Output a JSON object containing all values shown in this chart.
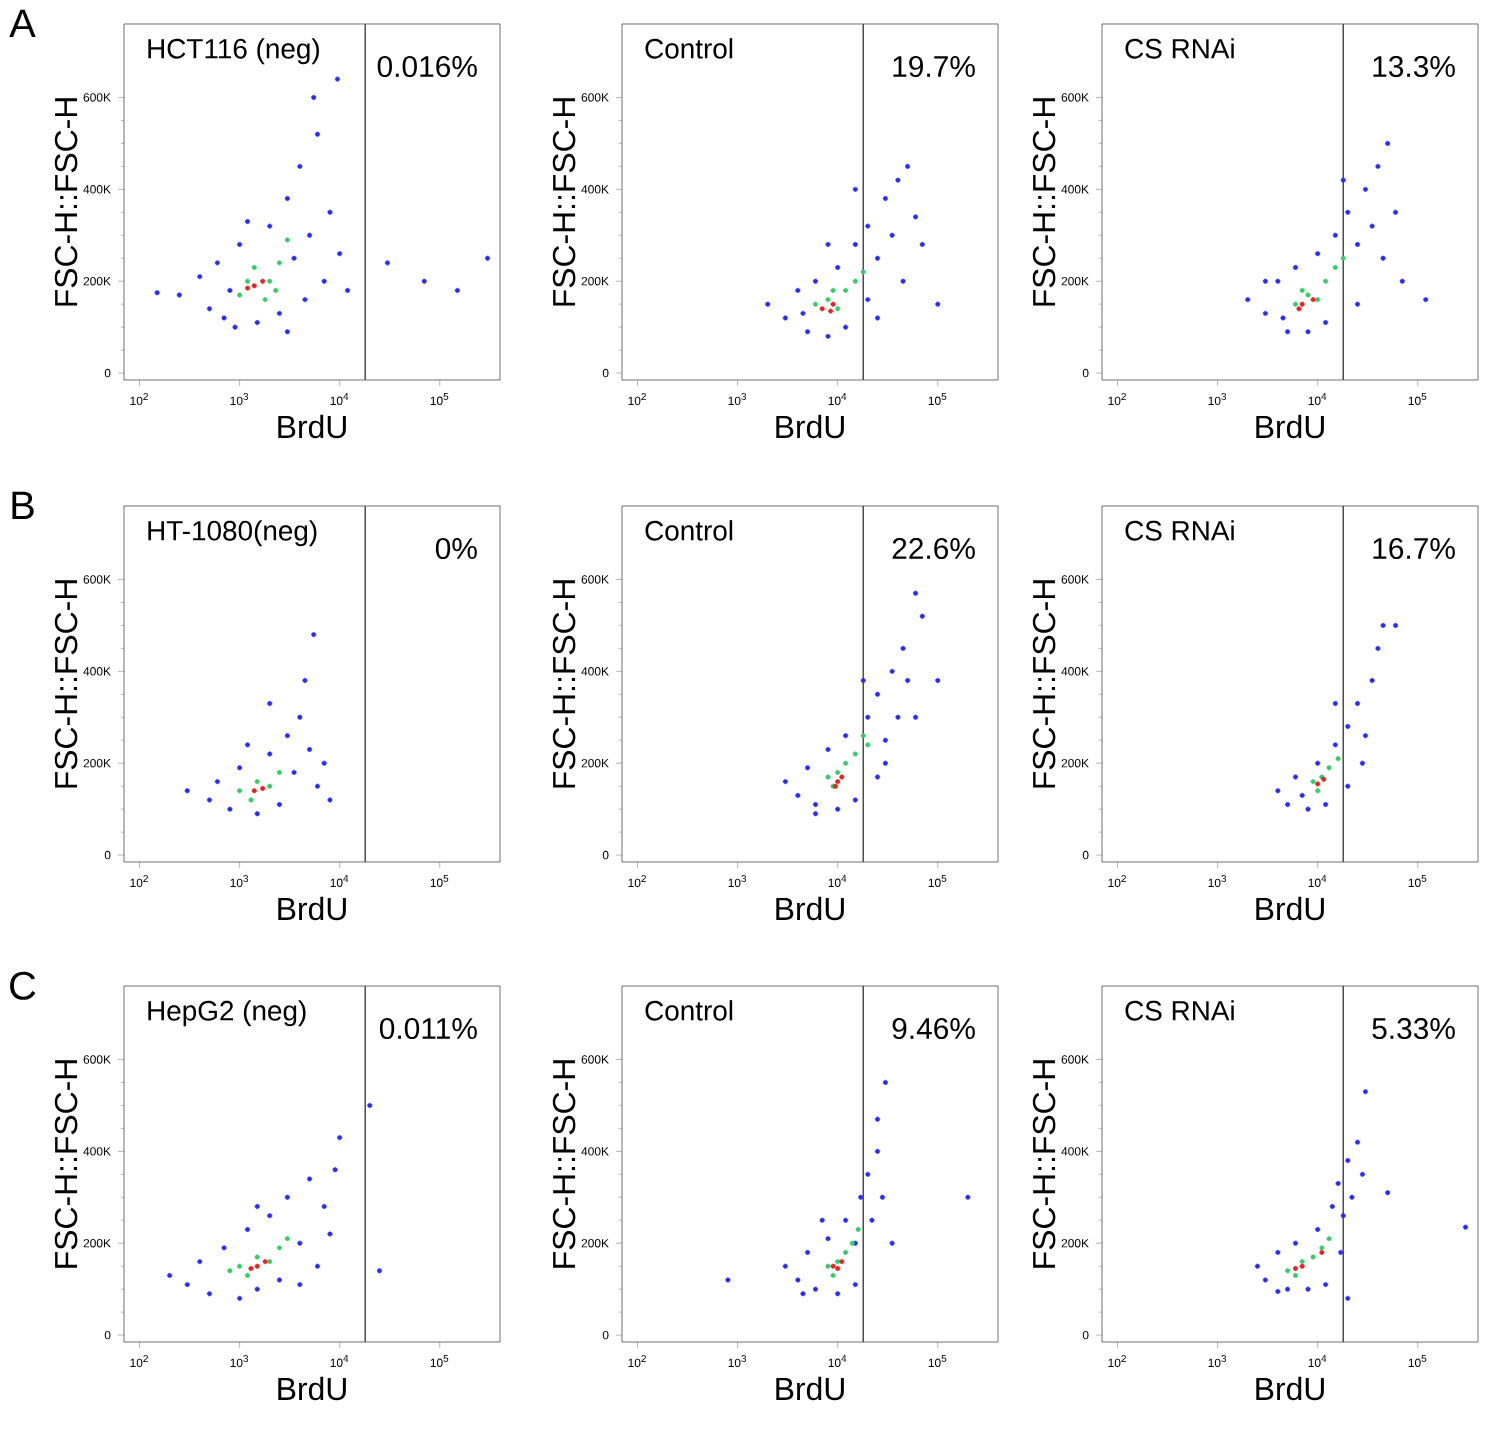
{
  "chart_data": [
    {
      "type": "scatter",
      "xlabel": "BrdU",
      "ylabel": "FSC-H::FSC-H",
      "log": "x",
      "xlim": [
        70,
        400000
      ],
      "ylim": [
        -15000,
        760000
      ],
      "xticks": [
        {
          "value": 100,
          "label": "10$^{2}$"
        },
        {
          "value": 1000,
          "label": "10$^{3}$"
        },
        {
          "value": 10000,
          "label": "10$^{4}$"
        },
        {
          "value": 100000,
          "label": "10$^{5}$"
        }
      ],
      "yticks": [
        0,
        {
          "value": 200000,
          "label": "200K"
        },
        {
          "value": 400000,
          "label": "400K"
        },
        {
          "value": 600000,
          "label": "600K"
        }
      ],
      "ref_lines": [
        {
          "axis": "x",
          "value": 18000,
          "color": "#404040"
        }
      ],
      "annotations": [
        "A",
        "HCT116 (neg)",
        "0.016%"
      ],
      "series": [
        {
          "color": "#2a2aff",
          "x": [
            150,
            250,
            400,
            500,
            600,
            700,
            900,
            1000,
            1500,
            2000,
            2500,
            3000,
            3500,
            4000,
            4500,
            5000,
            6000,
            7000,
            8000,
            5500,
            9500,
            3000,
            1200,
            800,
            10000,
            30000,
            70000,
            150000,
            300000,
            12000
          ],
          "values": [
            175000,
            170000,
            210000,
            140000,
            240000,
            120000,
            100000,
            280000,
            110000,
            320000,
            130000,
            380000,
            250000,
            450000,
            160000,
            300000,
            520000,
            200000,
            350000,
            600000,
            640000,
            90000,
            330000,
            180000,
            260000,
            240000,
            200000,
            180000,
            250000,
            180000
          ]
        },
        {
          "color": "#33cc66",
          "x": [
            1000,
            1400,
            2000,
            1800,
            2500,
            1200,
            3000,
            2300
          ],
          "values": [
            170000,
            230000,
            200000,
            160000,
            240000,
            200000,
            290000,
            180000
          ]
        },
        {
          "color": "#e82020",
          "x": [
            1400,
            1700,
            1200
          ],
          "values": [
            190000,
            200000,
            185000
          ]
        }
      ]
    },
    {
      "type": "scatter",
      "xlabel": "BrdU",
      "ylabel": "FSC-H::FSC-H",
      "log": "x",
      "xlim": [
        70,
        400000
      ],
      "ylim": [
        -15000,
        760000
      ],
      "xticks": [
        {
          "value": 100,
          "label": "10$^{2}$"
        },
        {
          "value": 1000,
          "label": "10$^{3}$"
        },
        {
          "value": 10000,
          "label": "10$^{4}$"
        },
        {
          "value": 100000,
          "label": "10$^{5}$"
        }
      ],
      "yticks": [
        0,
        {
          "value": 200000,
          "label": "200K"
        },
        {
          "value": 400000,
          "label": "400K"
        },
        {
          "value": 600000,
          "label": "600K"
        }
      ],
      "ref_lines": [
        {
          "axis": "x",
          "value": 18000,
          "color": "#404040"
        }
      ],
      "annotations": [
        "Control",
        "19.7%"
      ],
      "series": [
        {
          "color": "#2a2aff",
          "x": [
            2000,
            3000,
            4000,
            5000,
            6000,
            8000,
            10000,
            12000,
            15000,
            20000,
            25000,
            30000,
            35000,
            40000,
            50000,
            60000,
            70000,
            20000,
            25000,
            15000,
            100000,
            8000,
            4500,
            45000
          ],
          "values": [
            150000,
            120000,
            180000,
            90000,
            200000,
            80000,
            230000,
            100000,
            280000,
            320000,
            250000,
            380000,
            300000,
            420000,
            450000,
            340000,
            280000,
            160000,
            120000,
            400000,
            150000,
            280000,
            130000,
            200000
          ]
        },
        {
          "color": "#33cc66",
          "x": [
            6000,
            8000,
            10000,
            12000,
            15000,
            18000,
            9000
          ],
          "values": [
            150000,
            160000,
            140000,
            180000,
            200000,
            220000,
            180000
          ]
        },
        {
          "color": "#e82020",
          "x": [
            7000,
            8500,
            9000
          ],
          "values": [
            140000,
            135000,
            150000
          ]
        }
      ]
    },
    {
      "type": "scatter",
      "xlabel": "BrdU",
      "ylabel": "FSC-H::FSC-H",
      "log": "x",
      "xlim": [
        70,
        400000
      ],
      "ylim": [
        -15000,
        760000
      ],
      "xticks": [
        {
          "value": 100,
          "label": "10$^{2}$"
        },
        {
          "value": 1000,
          "label": "10$^{3}$"
        },
        {
          "value": 10000,
          "label": "10$^{4}$"
        },
        {
          "value": 100000,
          "label": "10$^{5}$"
        }
      ],
      "yticks": [
        0,
        {
          "value": 200000,
          "label": "200K"
        },
        {
          "value": 400000,
          "label": "400K"
        },
        {
          "value": 600000,
          "label": "600K"
        }
      ],
      "ref_lines": [
        {
          "axis": "x",
          "value": 18000,
          "color": "#404040"
        }
      ],
      "annotations": [
        "CS RNAi",
        "13.3%"
      ],
      "series": [
        {
          "color": "#2a2aff",
          "x": [
            2000,
            3000,
            4000,
            5000,
            6000,
            8000,
            10000,
            12000,
            15000,
            20000,
            25000,
            30000,
            35000,
            40000,
            50000,
            60000,
            25000,
            18000,
            70000,
            4500,
            3000,
            45000,
            120000
          ],
          "values": [
            160000,
            130000,
            200000,
            90000,
            230000,
            90000,
            260000,
            110000,
            300000,
            350000,
            280000,
            400000,
            320000,
            450000,
            500000,
            350000,
            150000,
            420000,
            200000,
            120000,
            200000,
            250000,
            160000
          ]
        },
        {
          "color": "#33cc66",
          "x": [
            6000,
            8000,
            10000,
            12000,
            15000,
            18000,
            7000
          ],
          "values": [
            150000,
            170000,
            160000,
            200000,
            230000,
            250000,
            180000
          ]
        },
        {
          "color": "#e82020",
          "x": [
            7000,
            9000,
            6500
          ],
          "values": [
            150000,
            160000,
            140000
          ]
        }
      ]
    },
    {
      "type": "scatter",
      "xlabel": "BrdU",
      "ylabel": "FSC-H::FSC-H",
      "log": "x",
      "xlim": [
        70,
        400000
      ],
      "ylim": [
        -15000,
        760000
      ],
      "xticks": [
        {
          "value": 100,
          "label": "10$^{2}$"
        },
        {
          "value": 1000,
          "label": "10$^{3}$"
        },
        {
          "value": 10000,
          "label": "10$^{4}$"
        },
        {
          "value": 100000,
          "label": "10$^{5}$"
        }
      ],
      "yticks": [
        0,
        {
          "value": 200000,
          "label": "200K"
        },
        {
          "value": 400000,
          "label": "400K"
        },
        {
          "value": 600000,
          "label": "600K"
        }
      ],
      "ref_lines": [
        {
          "axis": "x",
          "value": 18000,
          "color": "#404040"
        }
      ],
      "annotations": [
        "B",
        "HT-1080(neg)",
        "0%"
      ],
      "series": [
        {
          "color": "#2a2aff",
          "x": [
            300,
            500,
            600,
            800,
            1000,
            1500,
            2000,
            2500,
            3000,
            3500,
            4000,
            5000,
            6000,
            4500,
            5500,
            2000,
            7000,
            1200,
            8000
          ],
          "values": [
            140000,
            120000,
            160000,
            100000,
            190000,
            90000,
            220000,
            110000,
            260000,
            180000,
            300000,
            230000,
            150000,
            380000,
            480000,
            330000,
            200000,
            240000,
            120000
          ]
        },
        {
          "color": "#33cc66",
          "x": [
            1000,
            1500,
            2000,
            1300,
            2500
          ],
          "values": [
            140000,
            160000,
            150000,
            120000,
            180000
          ]
        },
        {
          "color": "#e82020",
          "x": [
            1400,
            1700
          ],
          "values": [
            140000,
            145000
          ]
        }
      ]
    },
    {
      "type": "scatter",
      "xlabel": "BrdU",
      "ylabel": "FSC-H::FSC-H",
      "log": "x",
      "xlim": [
        70,
        400000
      ],
      "ylim": [
        -15000,
        760000
      ],
      "xticks": [
        {
          "value": 100,
          "label": "10$^{2}$"
        },
        {
          "value": 1000,
          "label": "10$^{3}$"
        },
        {
          "value": 10000,
          "label": "10$^{4}$"
        },
        {
          "value": 100000,
          "label": "10$^{5}$"
        }
      ],
      "yticks": [
        0,
        {
          "value": 200000,
          "label": "200K"
        },
        {
          "value": 400000,
          "label": "400K"
        },
        {
          "value": 600000,
          "label": "600K"
        }
      ],
      "ref_lines": [
        {
          "axis": "x",
          "value": 18000,
          "color": "#404040"
        }
      ],
      "annotations": [
        "Control",
        "22.6%"
      ],
      "series": [
        {
          "color": "#2a2aff",
          "x": [
            3000,
            4000,
            5000,
            6000,
            8000,
            10000,
            12000,
            15000,
            20000,
            25000,
            30000,
            35000,
            40000,
            45000,
            50000,
            60000,
            70000,
            100000,
            25000,
            30000,
            18000,
            6000,
            60000
          ],
          "values": [
            160000,
            130000,
            190000,
            110000,
            230000,
            100000,
            260000,
            120000,
            300000,
            350000,
            250000,
            400000,
            300000,
            450000,
            380000,
            570000,
            520000,
            380000,
            170000,
            200000,
            380000,
            90000,
            300000
          ]
        },
        {
          "color": "#33cc66",
          "x": [
            8000,
            10000,
            12000,
            15000,
            18000,
            20000,
            9000
          ],
          "values": [
            170000,
            180000,
            200000,
            220000,
            260000,
            240000,
            150000
          ]
        },
        {
          "color": "#e82020",
          "x": [
            10000,
            11000,
            9500
          ],
          "values": [
            160000,
            170000,
            150000
          ]
        }
      ]
    },
    {
      "type": "scatter",
      "xlabel": "BrdU",
      "ylabel": "FSC-H::FSC-H",
      "log": "x",
      "xlim": [
        70,
        400000
      ],
      "ylim": [
        -15000,
        760000
      ],
      "xticks": [
        {
          "value": 100,
          "label": "10$^{2}$"
        },
        {
          "value": 1000,
          "label": "10$^{3}$"
        },
        {
          "value": 10000,
          "label": "10$^{4}$"
        },
        {
          "value": 100000,
          "label": "10$^{5}$"
        }
      ],
      "yticks": [
        0,
        {
          "value": 200000,
          "label": "200K"
        },
        {
          "value": 400000,
          "label": "400K"
        },
        {
          "value": 600000,
          "label": "600K"
        }
      ],
      "ref_lines": [
        {
          "axis": "x",
          "value": 18000,
          "color": "#404040"
        }
      ],
      "annotations": [
        "CS RNAi",
        "16.7%"
      ],
      "series": [
        {
          "color": "#2a2aff",
          "x": [
            4000,
            5000,
            6000,
            8000,
            10000,
            12000,
            15000,
            20000,
            25000,
            30000,
            35000,
            40000,
            45000,
            60000,
            20000,
            15000,
            7000,
            28000
          ],
          "values": [
            140000,
            110000,
            170000,
            100000,
            200000,
            110000,
            240000,
            280000,
            330000,
            260000,
            380000,
            450000,
            500000,
            500000,
            150000,
            330000,
            130000,
            200000
          ]
        },
        {
          "color": "#33cc66",
          "x": [
            9000,
            11000,
            13000,
            16000,
            10000
          ],
          "values": [
            160000,
            170000,
            190000,
            210000,
            140000
          ]
        },
        {
          "color": "#e82020",
          "x": [
            10000,
            11500
          ],
          "values": [
            155000,
            165000
          ]
        }
      ]
    },
    {
      "type": "scatter",
      "xlabel": "BrdU",
      "ylabel": "FSC-H::FSC-H",
      "log": "x",
      "xlim": [
        70,
        400000
      ],
      "ylim": [
        -15000,
        760000
      ],
      "xticks": [
        {
          "value": 100,
          "label": "10$^{2}$"
        },
        {
          "value": 1000,
          "label": "10$^{3}$"
        },
        {
          "value": 10000,
          "label": "10$^{4}$"
        },
        {
          "value": 100000,
          "label": "10$^{5}$"
        }
      ],
      "yticks": [
        0,
        {
          "value": 200000,
          "label": "200K"
        },
        {
          "value": 400000,
          "label": "400K"
        },
        {
          "value": 600000,
          "label": "600K"
        }
      ],
      "ref_lines": [
        {
          "axis": "x",
          "value": 18000,
          "color": "#404040"
        }
      ],
      "annotations": [
        "C",
        "HepG2 (neg)",
        "0.011%"
      ],
      "series": [
        {
          "color": "#2a2aff",
          "x": [
            200,
            300,
            400,
            500,
            700,
            1000,
            1200,
            1500,
            2000,
            2500,
            3000,
            4000,
            5000,
            6000,
            7000,
            8000,
            10000,
            20000,
            25000,
            4000,
            1500,
            9000
          ],
          "values": [
            130000,
            110000,
            160000,
            90000,
            190000,
            80000,
            230000,
            100000,
            260000,
            120000,
            300000,
            200000,
            340000,
            150000,
            280000,
            220000,
            430000,
            500000,
            140000,
            110000,
            280000,
            360000
          ]
        },
        {
          "color": "#33cc66",
          "x": [
            1000,
            1500,
            2000,
            2500,
            3000,
            1200,
            800
          ],
          "values": [
            150000,
            170000,
            160000,
            190000,
            210000,
            130000,
            140000
          ]
        },
        {
          "color": "#e82020",
          "x": [
            1500,
            1800,
            1300
          ],
          "values": [
            150000,
            160000,
            145000
          ]
        }
      ]
    },
    {
      "type": "scatter",
      "xlabel": "BrdU",
      "ylabel": "FSC-H::FSC-H",
      "log": "x",
      "xlim": [
        70,
        400000
      ],
      "ylim": [
        -15000,
        760000
      ],
      "xticks": [
        {
          "value": 100,
          "label": "10$^{2}$"
        },
        {
          "value": 1000,
          "label": "10$^{3}$"
        },
        {
          "value": 10000,
          "label": "10$^{4}$"
        },
        {
          "value": 100000,
          "label": "10$^{5}$"
        }
      ],
      "yticks": [
        0,
        {
          "value": 200000,
          "label": "200K"
        },
        {
          "value": 400000,
          "label": "400K"
        },
        {
          "value": 600000,
          "label": "600K"
        }
      ],
      "ref_lines": [
        {
          "axis": "x",
          "value": 18000,
          "color": "#404040"
        }
      ],
      "annotations": [
        "Control",
        "9.46%"
      ],
      "series": [
        {
          "color": "#2a2aff",
          "x": [
            3000,
            4000,
            5000,
            6000,
            8000,
            10000,
            12000,
            15000,
            17000,
            20000,
            22000,
            25000,
            28000,
            30000,
            25000,
            200000,
            800,
            35000,
            15000,
            7000,
            4500
          ],
          "values": [
            150000,
            120000,
            180000,
            100000,
            210000,
            90000,
            250000,
            110000,
            300000,
            350000,
            250000,
            400000,
            300000,
            550000,
            470000,
            300000,
            120000,
            200000,
            200000,
            250000,
            90000
          ]
        },
        {
          "color": "#33cc66",
          "x": [
            8000,
            10000,
            12000,
            14000,
            16000,
            9000
          ],
          "values": [
            150000,
            160000,
            180000,
            200000,
            230000,
            130000
          ]
        },
        {
          "color": "#e82020",
          "x": [
            9000,
            10000,
            11000
          ],
          "values": [
            150000,
            145000,
            160000
          ]
        }
      ]
    },
    {
      "type": "scatter",
      "xlabel": "BrdU",
      "ylabel": "FSC-H::FSC-H",
      "log": "x",
      "xlim": [
        70,
        400000
      ],
      "ylim": [
        -15000,
        760000
      ],
      "xticks": [
        {
          "value": 100,
          "label": "10$^{2}$"
        },
        {
          "value": 1000,
          "label": "10$^{3}$"
        },
        {
          "value": 10000,
          "label": "10$^{4}$"
        },
        {
          "value": 100000,
          "label": "10$^{5}$"
        }
      ],
      "yticks": [
        0,
        {
          "value": 200000,
          "label": "200K"
        },
        {
          "value": 400000,
          "label": "400K"
        },
        {
          "value": 600000,
          "label": "600K"
        }
      ],
      "ref_lines": [
        {
          "axis": "x",
          "value": 18000,
          "color": "#404040"
        }
      ],
      "annotations": [
        "CS RNAi",
        "5.33%"
      ],
      "series": [
        {
          "color": "#2a2aff",
          "x": [
            2500,
            3000,
            4000,
            5000,
            6000,
            8000,
            10000,
            12000,
            14000,
            16000,
            18000,
            20000,
            22000,
            25000,
            30000,
            50000,
            300000,
            20000,
            4000,
            17000,
            28000
          ],
          "values": [
            150000,
            120000,
            180000,
            100000,
            200000,
            100000,
            230000,
            110000,
            280000,
            330000,
            260000,
            380000,
            300000,
            420000,
            530000,
            310000,
            235000,
            80000,
            95000,
            180000,
            350000
          ]
        },
        {
          "color": "#33cc66",
          "x": [
            5000,
            7000,
            9000,
            11000,
            13000,
            6000
          ],
          "values": [
            140000,
            160000,
            170000,
            190000,
            210000,
            130000
          ]
        },
        {
          "color": "#e82020",
          "x": [
            6000,
            7000,
            11000
          ],
          "values": [
            145000,
            150000,
            180000
          ]
        }
      ]
    }
  ]
}
